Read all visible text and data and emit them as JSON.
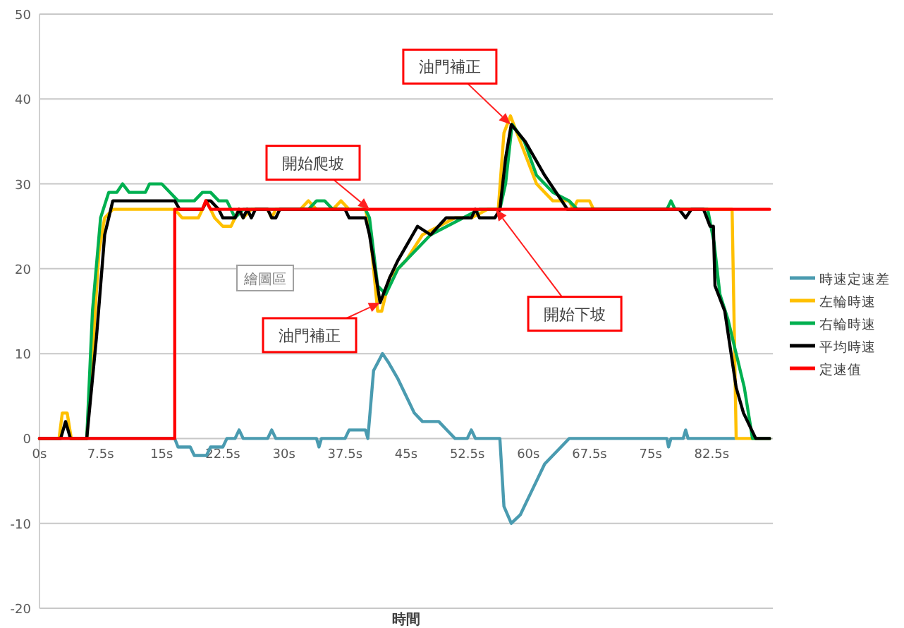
{
  "chart_data": {
    "type": "line",
    "xlabel": "時間",
    "xlim": [
      0,
      90
    ],
    "ylim": [
      -20,
      50
    ],
    "xticks": [
      {
        "value": 0,
        "label": "0s"
      },
      {
        "value": 7.5,
        "label": "7.5s"
      },
      {
        "value": 15,
        "label": "15s"
      },
      {
        "value": 22.5,
        "label": "22.5s"
      },
      {
        "value": 30,
        "label": "30s"
      },
      {
        "value": 37.5,
        "label": "37.5s"
      },
      {
        "value": 45,
        "label": "45s"
      },
      {
        "value": 52.5,
        "label": "52.5s"
      },
      {
        "value": 60,
        "label": "60s"
      },
      {
        "value": 67.5,
        "label": "67.5s"
      },
      {
        "value": 75,
        "label": "75s"
      },
      {
        "value": 82.5,
        "label": "82.5s"
      }
    ],
    "yticks": [
      -20,
      -10,
      0,
      10,
      20,
      30,
      40,
      50
    ],
    "grid": "y",
    "legend": "right",
    "series": [
      {
        "name": "時速定速差",
        "color": "#4a9bb0",
        "x": [
          0,
          16.6,
          17,
          18.5,
          19,
          20.5,
          21,
          22.5,
          23,
          24,
          24.5,
          25,
          28,
          28.5,
          29,
          34,
          34.3,
          34.6,
          37.5,
          38,
          40,
          40.3,
          41,
          42.1,
          42.8,
          44,
          45,
          46,
          47,
          49,
          50,
          51,
          52.5,
          53,
          53.5,
          56.5,
          57,
          57.9,
          59,
          60,
          61,
          62,
          63,
          64,
          65,
          77,
          77.2,
          77.5,
          79,
          79.3,
          79.6,
          85.3
        ],
        "values": [
          0,
          0,
          -1,
          -1,
          -2,
          -2,
          -1,
          -1,
          0,
          0,
          1,
          0,
          0,
          1,
          0,
          0,
          -1,
          0,
          0,
          1,
          1,
          0,
          8,
          10,
          9,
          7,
          5,
          3,
          2,
          2,
          1,
          0,
          0,
          1,
          0,
          0,
          -8,
          -10,
          -9,
          -7,
          -5,
          -3,
          -2,
          -1,
          0,
          0,
          -1,
          0,
          0,
          1,
          0,
          0
        ]
      },
      {
        "name": "左輪時速",
        "color": "#ffc000",
        "x": [
          0,
          2.4,
          2.8,
          3.4,
          3.9,
          5.8,
          6.5,
          7.3,
          8,
          9,
          16.6,
          17.5,
          19.5,
          20.5,
          21.5,
          22.5,
          23.5,
          24.5,
          25,
          26,
          28,
          28.5,
          29,
          30,
          32,
          33,
          34,
          36,
          37,
          38,
          40,
          40.5,
          41.5,
          42,
          43,
          45,
          47,
          49,
          51,
          53,
          55,
          56.3,
          57,
          57.8,
          59,
          61,
          63,
          65,
          65.5,
          66,
          67.5,
          68,
          69,
          70,
          85,
          85.5,
          89.6
        ],
        "values": [
          0,
          0,
          3,
          3,
          0,
          0,
          10,
          22,
          26,
          27,
          27,
          26,
          26,
          28,
          26,
          25,
          25,
          27,
          26,
          27,
          27,
          26,
          27,
          27,
          27,
          28,
          27,
          27,
          28,
          27,
          27,
          25,
          15,
          15,
          19,
          21,
          24,
          25,
          26,
          26,
          27,
          27,
          36,
          38,
          35,
          30,
          28,
          28,
          27,
          28,
          28,
          27,
          27,
          27,
          27,
          0,
          0
        ]
      },
      {
        "name": "右輪時速",
        "color": "#00b050",
        "x": [
          5.8,
          6.5,
          7.5,
          8.5,
          9.5,
          10.2,
          11,
          13,
          13.5,
          15,
          16,
          17,
          19,
          20,
          21,
          22,
          23,
          24,
          25,
          26,
          30,
          33,
          34,
          35,
          36,
          38,
          40,
          40.5,
          41.5,
          42.5,
          44,
          46,
          48,
          50,
          52,
          54,
          56.5,
          57.2,
          58,
          59.5,
          61,
          63,
          65,
          66,
          77,
          77.5,
          78,
          80,
          82,
          82.8,
          83.5,
          84.5,
          85.5,
          86.5,
          87.5,
          89.6
        ],
        "values": [
          0,
          15,
          26,
          29,
          29,
          30,
          29,
          29,
          30,
          30,
          29,
          28,
          28,
          29,
          29,
          28,
          28,
          26,
          27,
          27,
          27,
          27,
          28,
          28,
          27,
          27,
          27,
          26,
          18,
          17,
          20,
          22,
          24,
          25,
          26,
          27,
          27,
          30,
          37,
          35,
          31,
          29,
          28,
          27,
          27,
          28,
          27,
          27,
          27,
          23,
          17,
          14,
          10,
          6,
          0,
          0
        ]
      },
      {
        "name": "平均時速",
        "color": "#000000",
        "x": [
          0,
          2.6,
          3.2,
          3.8,
          5.8,
          7,
          8,
          9,
          16.6,
          17.2,
          20,
          20.5,
          21,
          22,
          22.5,
          24,
          24.5,
          25,
          25.5,
          26,
          26.5,
          28,
          28.5,
          29,
          29.5,
          30,
          37.5,
          38,
          40,
          40.5,
          41.8,
          43,
          44,
          46.4,
          48,
          49.9,
          52.7,
          53,
          53.5,
          54,
          55.9,
          56.5,
          57.2,
          57.9,
          59.6,
          62,
          64.8,
          65.5,
          78.5,
          79.3,
          80,
          81.5,
          82.3,
          82.7,
          82.9,
          84.1,
          85.5,
          86.4,
          87.9,
          89.6
        ],
        "values": [
          0,
          0,
          2,
          0,
          0,
          12,
          24,
          28,
          28,
          27,
          27,
          28,
          28,
          27,
          26,
          26,
          27,
          26,
          27,
          26,
          27,
          27,
          26,
          26,
          27,
          27,
          27,
          26,
          26,
          24,
          16,
          19,
          21,
          25,
          24,
          26,
          26,
          26,
          27,
          26,
          26,
          27,
          33,
          37,
          35,
          31,
          27,
          27,
          27,
          26,
          27,
          27,
          25,
          25,
          18,
          15,
          6,
          3,
          0,
          0
        ]
      },
      {
        "name": "定速值",
        "color": "#ff0000",
        "x": [
          0,
          16.6,
          16.6,
          20,
          20.4,
          21,
          89.6
        ],
        "values": [
          0,
          0,
          27,
          27,
          28,
          27,
          27
        ]
      }
    ],
    "annotations": [
      {
        "text": "油門補正",
        "x": 57.8,
        "y": 37
      },
      {
        "text": "開始爬坡",
        "x": 40.5,
        "y": 27
      },
      {
        "text": "油門補正",
        "x": 41.8,
        "y": 16
      },
      {
        "text": "開始下坡",
        "x": 56,
        "y": 27
      },
      "繪圖區"
    ]
  }
}
